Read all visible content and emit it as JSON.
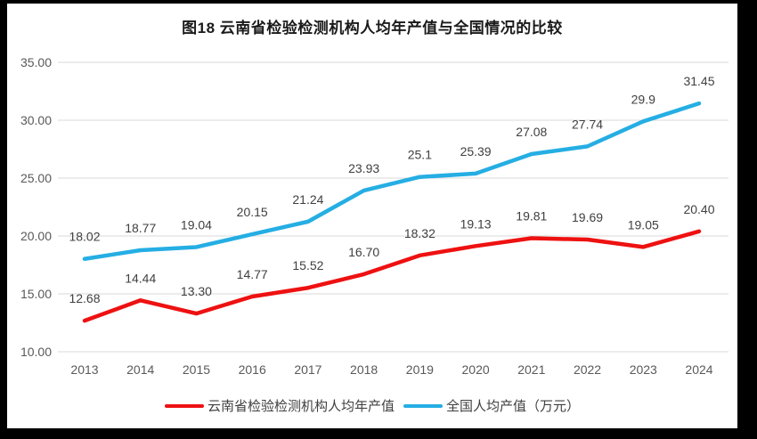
{
  "title": "图18 云南省检验检测机构人均年产值与全国情况的比较",
  "colors": {
    "yunnan_line": "#ee1111",
    "national_line": "#25aee3",
    "gridline": "#d9d9d9",
    "axis_text": "#595959",
    "data_label_text": "#3f3f3f",
    "title_text": "#1a1a1a",
    "background": "#ffffff",
    "frame": "#000000"
  },
  "chart_data": {
    "type": "line",
    "title": "图18 云南省检验检测机构人均年产值与全国情况的比较",
    "categories": [
      "2013",
      "2014",
      "2015",
      "2016",
      "2017",
      "2018",
      "2019",
      "2020",
      "2021",
      "2022",
      "2023",
      "2024"
    ],
    "series": [
      {
        "name": "云南省检验检测机构人均年产值",
        "color_key": "yunnan_line",
        "values": [
          12.68,
          14.44,
          13.3,
          14.77,
          15.52,
          16.7,
          18.32,
          19.13,
          19.81,
          19.69,
          19.05,
          20.4
        ],
        "labels": [
          "12.68",
          "14.44",
          "13.30",
          "14.77",
          "15.52",
          "16.70",
          "18.32",
          "19.13",
          "19.81",
          "19.69",
          "19.05",
          "20.40"
        ]
      },
      {
        "name": "全国人均产值（万元）",
        "color_key": "national_line",
        "values": [
          18.02,
          18.77,
          19.04,
          20.15,
          21.24,
          23.93,
          25.1,
          25.39,
          27.08,
          27.74,
          29.9,
          31.45
        ],
        "labels": [
          "18.02",
          "18.77",
          "19.04",
          "20.15",
          "21.24",
          "23.93",
          "25.1",
          "25.39",
          "27.08",
          "27.74",
          "29.9",
          "31.45"
        ]
      }
    ],
    "xlabel": "",
    "ylabel": "",
    "ylim": [
      10,
      35
    ],
    "ytick_step": 5,
    "ytick_labels": [
      "10.00",
      "15.00",
      "20.00",
      "25.00",
      "30.00",
      "35.00"
    ],
    "grid": "horizontal-only",
    "legend_position": "bottom",
    "data_labels_shown": true
  },
  "legend": {
    "items": [
      {
        "label": "云南省检验检测机构人均年产值",
        "color_key": "yunnan_line"
      },
      {
        "label": "全国人均产值（万元）",
        "color_key": "national_line"
      }
    ]
  }
}
